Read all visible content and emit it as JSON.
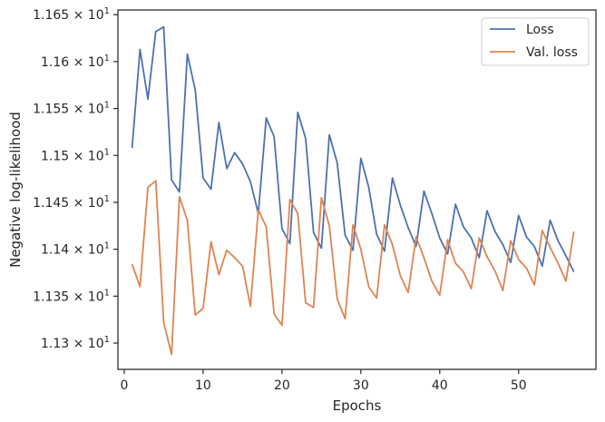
{
  "chart_data": {
    "type": "line",
    "xlabel": "Epochs",
    "ylabel": "Negative log-likelihood",
    "xlim": [
      -0.8,
      59.8
    ],
    "ylim": [
      11.272,
      11.655
    ],
    "xticks": [
      0,
      10,
      20,
      30,
      40,
      50
    ],
    "xtick_labels": [
      "0",
      "10",
      "20",
      "30",
      "40",
      "50"
    ],
    "yticks": [
      11.3,
      11.35,
      11.4,
      11.45,
      11.5,
      11.55,
      11.6,
      11.65
    ],
    "ytick_mantissas": [
      "1.13",
      "1.135",
      "1.14",
      "1.145",
      "1.15",
      "1.155",
      "1.16",
      "1.165"
    ],
    "ytick_base": "10",
    "ytick_exp": "1",
    "grid": false,
    "legend_position": "top-right",
    "x": [
      1,
      2,
      3,
      4,
      5,
      6,
      7,
      8,
      9,
      10,
      11,
      12,
      13,
      14,
      15,
      16,
      17,
      18,
      19,
      20,
      21,
      22,
      23,
      24,
      25,
      26,
      27,
      28,
      29,
      30,
      31,
      32,
      33,
      34,
      35,
      36,
      37,
      38,
      39,
      40,
      41,
      42,
      43,
      44,
      45,
      46,
      47,
      48,
      49,
      50,
      51,
      52,
      53,
      54,
      55,
      56,
      57
    ],
    "series": [
      {
        "name": "Loss",
        "color": "#4c72b0",
        "values": [
          11.508,
          11.613,
          11.56,
          11.632,
          11.637,
          11.474,
          11.461,
          11.608,
          11.57,
          11.476,
          11.464,
          11.535,
          11.486,
          11.503,
          11.491,
          11.472,
          11.438,
          11.54,
          11.52,
          11.422,
          11.406,
          11.546,
          11.518,
          11.418,
          11.401,
          11.522,
          11.492,
          11.415,
          11.399,
          11.497,
          11.466,
          11.416,
          11.398,
          11.476,
          11.447,
          11.423,
          11.403,
          11.462,
          11.438,
          11.412,
          11.395,
          11.448,
          11.424,
          11.412,
          11.391,
          11.441,
          11.419,
          11.405,
          11.386,
          11.436,
          11.413,
          11.403,
          11.382,
          11.431,
          11.409,
          11.393,
          11.376
        ]
      },
      {
        "name": "Val. loss",
        "color": "#dd8452",
        "values": [
          11.384,
          11.36,
          11.466,
          11.473,
          11.322,
          11.288,
          11.456,
          11.431,
          11.33,
          11.337,
          11.408,
          11.373,
          11.399,
          11.391,
          11.382,
          11.339,
          11.442,
          11.424,
          11.331,
          11.319,
          11.453,
          11.438,
          11.343,
          11.338,
          11.455,
          11.425,
          11.347,
          11.326,
          11.426,
          11.4,
          11.36,
          11.348,
          11.426,
          11.405,
          11.372,
          11.354,
          11.413,
          11.391,
          11.366,
          11.351,
          11.41,
          11.385,
          11.376,
          11.358,
          11.412,
          11.392,
          11.377,
          11.356,
          11.409,
          11.389,
          11.38,
          11.362,
          11.42,
          11.402,
          11.385,
          11.366,
          11.419
        ]
      }
    ]
  }
}
